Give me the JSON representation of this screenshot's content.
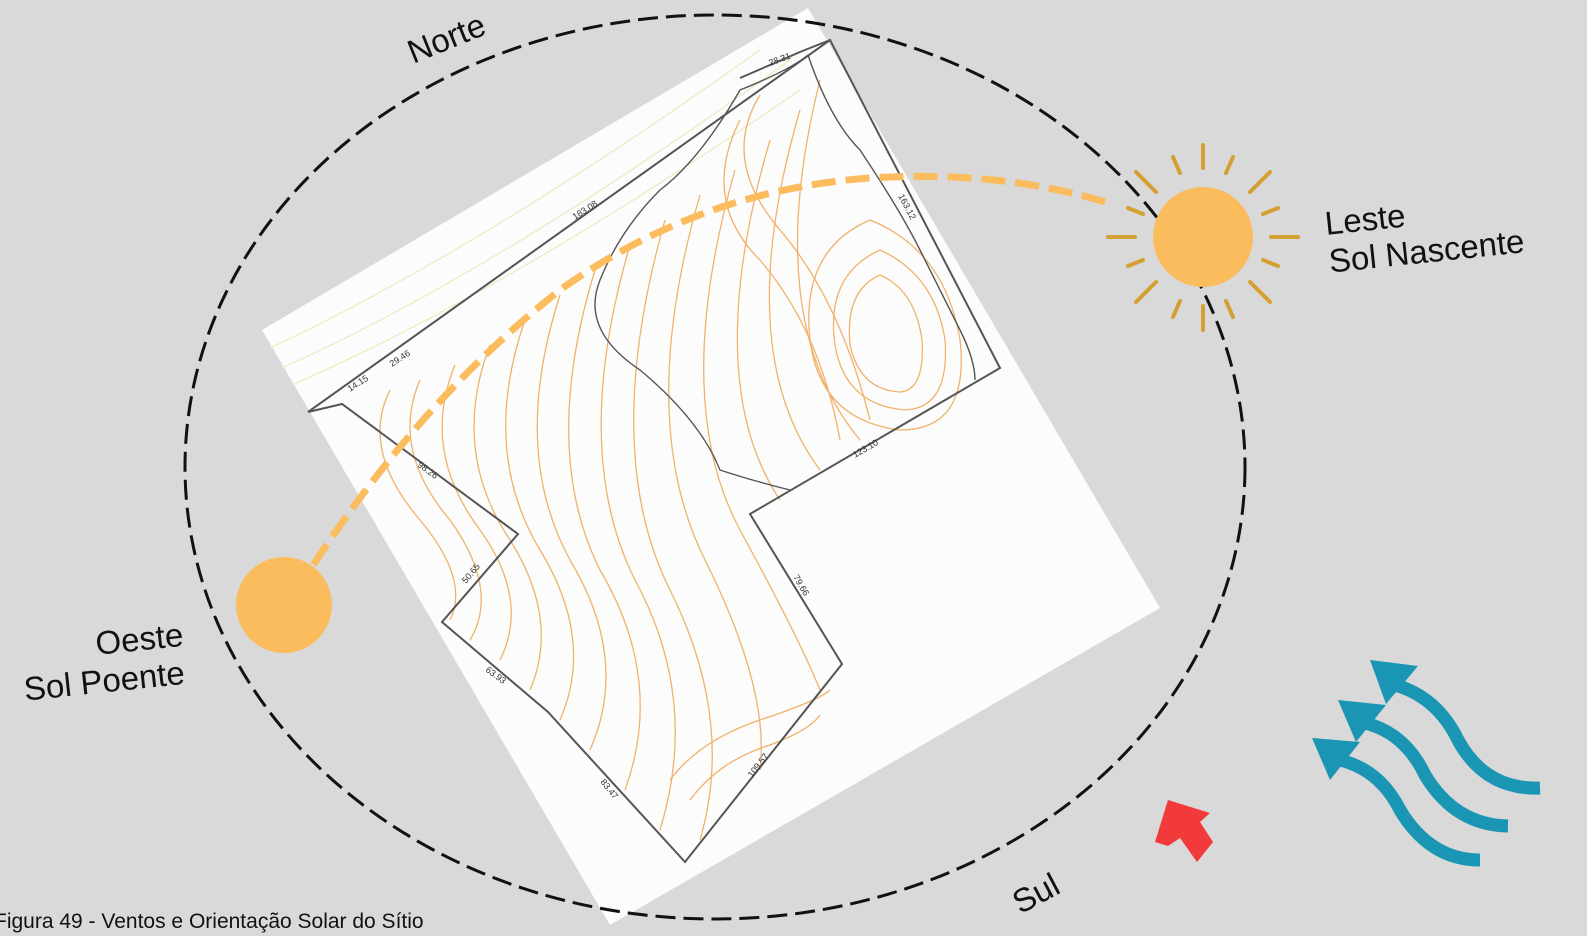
{
  "directions": {
    "north": "Norte",
    "south": "Sul",
    "east": "Leste",
    "east_sub": "Sol Nascente",
    "west": "Oeste",
    "west_sub": "Sol Poente"
  },
  "boundary_measures": {
    "top_short": "28.31",
    "top_long": "183.08",
    "top_mid": "29.46",
    "top_left": "14.15",
    "right_side": "163.12",
    "inner_right": "123.10",
    "left_upper": "98.26",
    "left_mid": "50.65",
    "left_lower": "63.93",
    "bottom_left": "83.47",
    "bottom_right": "109.57",
    "inner_vertical": "79.66"
  },
  "caption": "Figura 49 - Ventos e Orientação Solar do Sítio",
  "icons": [
    "sun-rising-icon",
    "sun-setting-icon",
    "north-arrow-icon",
    "wind-icon"
  ],
  "colors": {
    "background": "#d9d9d9",
    "sun": "#fbbc5d",
    "sun_rays": "#d4a032",
    "contours": "#f0b26a",
    "wind": "#1a96b4",
    "north_arrow": "#f23a3a",
    "boundary": "#555555"
  }
}
